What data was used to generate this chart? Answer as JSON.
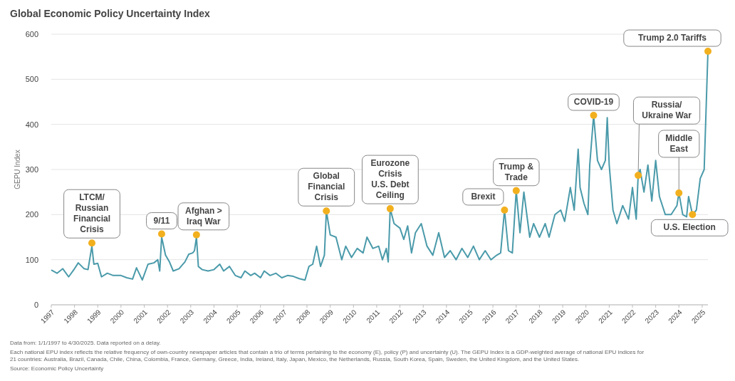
{
  "chart_data": {
    "type": "line",
    "title": "Global Economic Policy Uncertainty Index",
    "ylabel": "GEPU Index",
    "xlim": [
      "1997-01",
      "2025-04"
    ],
    "xticks": [
      {
        "value": "1997",
        "label": "1997"
      },
      {
        "value": "1998",
        "label": "1998"
      },
      {
        "value": "1999",
        "label": "1999"
      },
      {
        "value": "2000",
        "label": "2000"
      },
      {
        "value": "2001",
        "label": "2001"
      },
      {
        "value": "2002",
        "label": "2002"
      },
      {
        "value": "2003",
        "label": "2003"
      },
      {
        "value": "2004",
        "label": "2004"
      },
      {
        "value": "2005",
        "label": "2005"
      },
      {
        "value": "2006",
        "label": "2006"
      },
      {
        "value": "2007",
        "label": "2007"
      },
      {
        "value": "2008",
        "label": "2008"
      },
      {
        "value": "2009",
        "label": "2009"
      },
      {
        "value": "2010",
        "label": "2010"
      },
      {
        "value": "2011",
        "label": "2011"
      },
      {
        "value": "2012",
        "label": "2012"
      },
      {
        "value": "2013",
        "label": "2013"
      },
      {
        "value": "2014",
        "label": "2014"
      },
      {
        "value": "2015",
        "label": "2015"
      },
      {
        "value": "2016",
        "label": "2016"
      },
      {
        "value": "2017",
        "label": "2017"
      },
      {
        "value": "2018",
        "label": "2018"
      },
      {
        "value": "2019",
        "label": "2019"
      },
      {
        "value": "2020",
        "label": "2020"
      },
      {
        "value": "2021",
        "label": "2021"
      },
      {
        "value": "2022",
        "label": "2022"
      },
      {
        "value": "2023",
        "label": "2023"
      },
      {
        "value": "2024",
        "label": "2024"
      },
      {
        "value": "2025",
        "label": "2025"
      }
    ],
    "ylim": [
      0,
      600
    ],
    "yticks": [
      0,
      100,
      200,
      300,
      400,
      500,
      600
    ],
    "grid": "y",
    "line_style": "solid",
    "series": [
      {
        "color": "#4a9aaa",
        "x": [
          "1997-01",
          "1997-04",
          "1997-07",
          "1997-10",
          "1998-01",
          "1998-03",
          "1998-06",
          "1998-08",
          "1998-10",
          "1998-11",
          "1999-01",
          "1999-03",
          "1999-06",
          "1999-09",
          "2000-01",
          "2000-04",
          "2000-07",
          "2000-09",
          "2000-12",
          "2001-03",
          "2001-06",
          "2001-08",
          "2001-09",
          "2001-10",
          "2001-12",
          "2002-02",
          "2002-04",
          "2002-07",
          "2002-10",
          "2002-12",
          "2003-02",
          "2003-03",
          "2003-04",
          "2003-05",
          "2003-07",
          "2003-10",
          "2004-01",
          "2004-04",
          "2004-06",
          "2004-09",
          "2004-12",
          "2005-03",
          "2005-05",
          "2005-08",
          "2005-10",
          "2006-01",
          "2006-03",
          "2006-06",
          "2006-09",
          "2006-12",
          "2007-03",
          "2007-06",
          "2007-09",
          "2007-12",
          "2008-02",
          "2008-04",
          "2008-06",
          "2008-08",
          "2008-10",
          "2008-11",
          "2009-01",
          "2009-04",
          "2009-07",
          "2009-09",
          "2009-12",
          "2010-03",
          "2010-06",
          "2010-08",
          "2010-11",
          "2011-02",
          "2011-04",
          "2011-06",
          "2011-07",
          "2011-08",
          "2011-10",
          "2012-01",
          "2012-03",
          "2012-05",
          "2012-07",
          "2012-09",
          "2012-12",
          "2013-03",
          "2013-06",
          "2013-09",
          "2013-12",
          "2014-03",
          "2014-06",
          "2014-09",
          "2014-12",
          "2015-03",
          "2015-06",
          "2015-09",
          "2015-12",
          "2016-03",
          "2016-05",
          "2016-07",
          "2016-09",
          "2016-11",
          "2017-01",
          "2017-03",
          "2017-05",
          "2017-08",
          "2017-10",
          "2018-01",
          "2018-04",
          "2018-06",
          "2018-09",
          "2018-12",
          "2019-02",
          "2019-05",
          "2019-07",
          "2019-09",
          "2019-10",
          "2019-12",
          "2020-02",
          "2020-03",
          "2020-05",
          "2020-07",
          "2020-09",
          "2020-11",
          "2020-12",
          "2021-01",
          "2021-03",
          "2021-05",
          "2021-08",
          "2021-11",
          "2022-01",
          "2022-03",
          "2022-04",
          "2022-05",
          "2022-07",
          "2022-09",
          "2022-11",
          "2023-01",
          "2023-03",
          "2023-06",
          "2023-09",
          "2023-12",
          "2024-01",
          "2024-03",
          "2024-05",
          "2024-06",
          "2024-08",
          "2024-10",
          "2024-12",
          "2025-02",
          "2025-04"
        ],
        "values": [
          77,
          70,
          80,
          62,
          80,
          93,
          80,
          78,
          130,
          90,
          92,
          62,
          70,
          65,
          65,
          60,
          57,
          82,
          55,
          90,
          93,
          100,
          75,
          150,
          110,
          95,
          75,
          80,
          95,
          112,
          115,
          120,
          150,
          85,
          78,
          75,
          78,
          90,
          75,
          85,
          65,
          60,
          75,
          65,
          70,
          60,
          75,
          65,
          70,
          60,
          65,
          63,
          58,
          55,
          85,
          90,
          130,
          85,
          110,
          208,
          155,
          150,
          100,
          130,
          105,
          125,
          115,
          150,
          125,
          130,
          100,
          125,
          95,
          213,
          180,
          170,
          145,
          175,
          115,
          160,
          180,
          130,
          110,
          160,
          105,
          120,
          100,
          125,
          105,
          130,
          100,
          120,
          100,
          110,
          115,
          210,
          120,
          115,
          253,
          160,
          250,
          150,
          180,
          150,
          180,
          150,
          200,
          210,
          185,
          260,
          210,
          345,
          260,
          225,
          200,
          310,
          420,
          320,
          300,
          320,
          415,
          310,
          210,
          180,
          220,
          190,
          260,
          190,
          287,
          300,
          250,
          310,
          230,
          320,
          240,
          200,
          200,
          220,
          248,
          200,
          195,
          240,
          200,
          210,
          280,
          300,
          562
        ]
      }
    ],
    "annotations": [
      {
        "text": "LTCM/\nRussian\nFinancial\nCrisis",
        "x": "1998-10",
        "y": 137
      },
      {
        "text": "9/11",
        "x": "2001-10",
        "y": 157
      },
      {
        "text": "Afghan >\nIraq War",
        "x": "2003-04",
        "y": 155
      },
      {
        "text": "Global\nFinancial\nCrisis",
        "x": "2008-11",
        "y": 208
      },
      {
        "text": "Eurozone\nCrisis\nU.S. Debt\nCeiling",
        "x": "2011-08",
        "y": 213
      },
      {
        "text": "Brexit",
        "x": "2016-07",
        "y": 210
      },
      {
        "text": "Trump &\nTrade",
        "x": "2017-01",
        "y": 253
      },
      {
        "text": "COVID-19",
        "x": "2020-05",
        "y": 420
      },
      {
        "text": "Russia/\nUkraine War",
        "x": "2022-04",
        "y": 287
      },
      {
        "text": "Middle\nEast",
        "x": "2024-01",
        "y": 248
      },
      {
        "text": "U.S. Election",
        "x": "2024-08",
        "y": 200
      },
      {
        "text": "Trump 2.0 Tariffs",
        "x": "2025-04",
        "y": 562
      },
      "Data from: 1/1/1997 to 4/30/2025. Data reported on a delay.",
      "Each national EPU index reflects the relative frequency of own-country newspaper articles that contain a trio of terms pertaining to the economy (E), policy (P) and uncertainty (U). The GEPU Index is a GDP-weighted average of national EPU indices for 21 countries: Australia, Brazil, Canada, Chile, China, Colombia, France, Germany, Greece, India, Ireland, Italy, Japan, Mexico, the Netherlands, Russia, South Korea, Spain, Sweden, the United Kingdom, and the United States.",
      "Source: Economic Policy Uncertainty"
    ]
  }
}
